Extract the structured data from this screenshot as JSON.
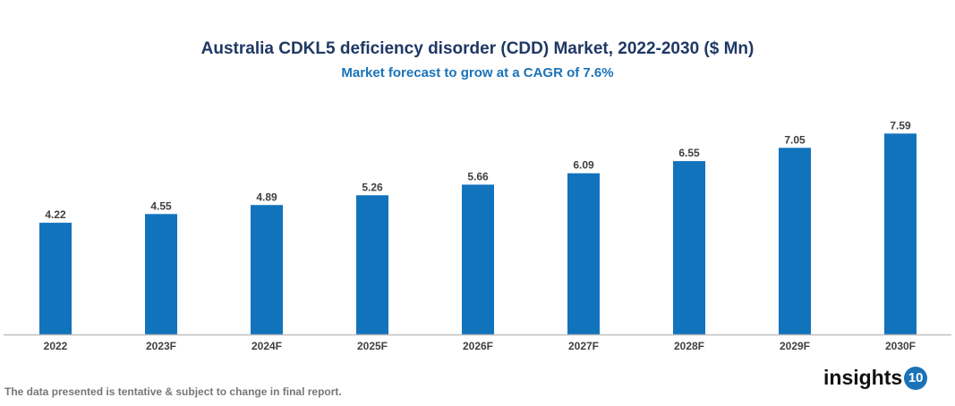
{
  "chart_data": {
    "type": "bar",
    "title": "Australia CDKL5 deficiency disorder (CDD) Market, 2022-2030 ($ Mn)",
    "subtitle": "Market forecast to grow at a CAGR of 7.6%",
    "categories": [
      "2022",
      "2023F",
      "2024F",
      "2025F",
      "2026F",
      "2027F",
      "2028F",
      "2029F",
      "2030F"
    ],
    "values": [
      4.22,
      4.55,
      4.89,
      5.26,
      5.66,
      6.09,
      6.55,
      7.05,
      7.59
    ],
    "ylim": [
      0,
      8
    ],
    "grid": false,
    "bar_color": "#1273bd"
  },
  "footer": "The data presented is tentative & subject to change in final report.",
  "logo": {
    "text": "insights",
    "badge": "10"
  }
}
